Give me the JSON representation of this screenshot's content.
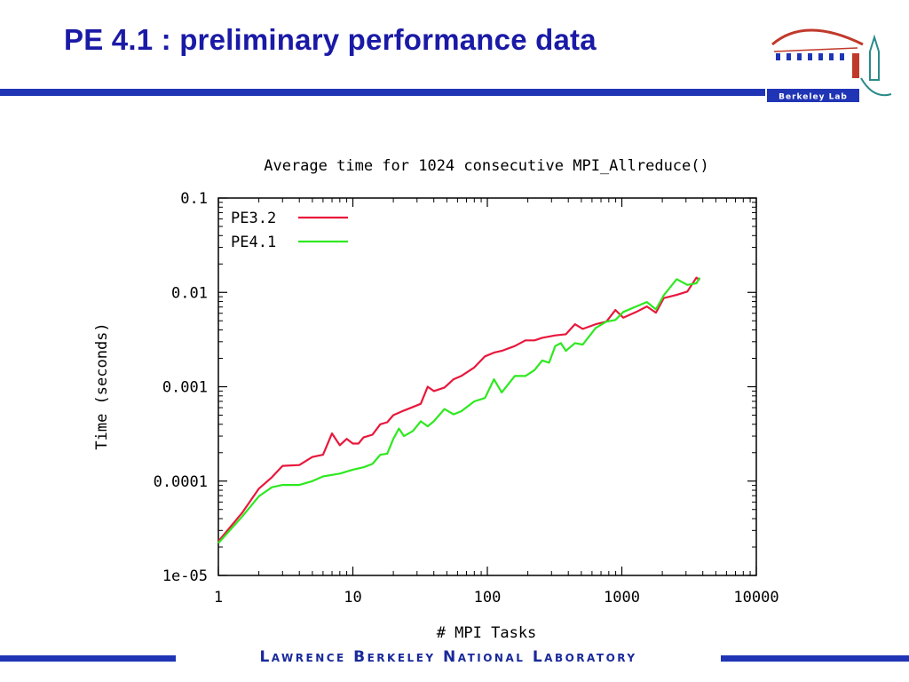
{
  "slide": {
    "title": "PE 4.1 : preliminary performance data",
    "logo_text": "Berkeley Lab",
    "footer": "Lawrence Berkeley National Laboratory"
  },
  "colors": {
    "accent": "#2035b5",
    "title": "#1a1aa6",
    "pe32": "#e8173c",
    "pe41": "#2ee820"
  },
  "chart_data": {
    "type": "line",
    "title": "Average time for 1024 consecutive MPI_Allreduce()",
    "xlabel": "# MPI Tasks",
    "ylabel": "Time (seconds)",
    "xscale": "log",
    "yscale": "log",
    "xlim": [
      1,
      10000
    ],
    "ylim": [
      1e-05,
      0.1
    ],
    "x_ticks": [
      1,
      10,
      100,
      1000,
      10000
    ],
    "x_tick_labels": [
      "1",
      "10",
      "100",
      "1000",
      "10000"
    ],
    "y_ticks": [
      1e-05,
      0.0001,
      0.001,
      0.01,
      0.1
    ],
    "y_tick_labels": [
      "1e-05",
      "0.0001",
      "0.001",
      "0.01",
      "0.1"
    ],
    "grid": false,
    "legend": "top-left",
    "series": [
      {
        "name": "PE3.2",
        "color": "#e8173c",
        "points": [
          [
            1,
            2.3e-05
          ],
          [
            1.5,
            4.6e-05
          ],
          [
            2,
            8.3e-05
          ],
          [
            2.5,
            0.00011
          ],
          [
            3,
            0.000145
          ],
          [
            4,
            0.000148
          ],
          [
            5,
            0.00018
          ],
          [
            6,
            0.00019
          ],
          [
            7,
            0.00032
          ],
          [
            8,
            0.00024
          ],
          [
            9,
            0.00028
          ],
          [
            10,
            0.00025
          ],
          [
            11,
            0.00025
          ],
          [
            12,
            0.00029
          ],
          [
            14,
            0.00031
          ],
          [
            16,
            0.0004
          ],
          [
            18,
            0.00042
          ],
          [
            20,
            0.0005
          ],
          [
            24,
            0.00056
          ],
          [
            28,
            0.00061
          ],
          [
            32,
            0.00066
          ],
          [
            36,
            0.001
          ],
          [
            40,
            0.0009
          ],
          [
            48,
            0.00098
          ],
          [
            56,
            0.0012
          ],
          [
            64,
            0.0013
          ],
          [
            80,
            0.0016
          ],
          [
            96,
            0.0021
          ],
          [
            112,
            0.0023
          ],
          [
            128,
            0.0024
          ],
          [
            160,
            0.0027
          ],
          [
            192,
            0.0031
          ],
          [
            224,
            0.0031
          ],
          [
            256,
            0.0033
          ],
          [
            320,
            0.0035
          ],
          [
            384,
            0.0036
          ],
          [
            448,
            0.0046
          ],
          [
            512,
            0.0041
          ],
          [
            640,
            0.0046
          ],
          [
            768,
            0.0049
          ],
          [
            896,
            0.0065
          ],
          [
            1024,
            0.0054
          ],
          [
            1280,
            0.0062
          ],
          [
            1536,
            0.0071
          ],
          [
            1792,
            0.0061
          ],
          [
            2048,
            0.0087
          ],
          [
            2560,
            0.0094
          ],
          [
            3072,
            0.0102
          ],
          [
            3584,
            0.0143
          ],
          [
            3800,
            0.0135
          ]
        ]
      },
      {
        "name": "PE4.1",
        "color": "#2ee820",
        "points": [
          [
            1,
            2.2e-05
          ],
          [
            1.5,
            4.2e-05
          ],
          [
            2,
            6.9e-05
          ],
          [
            2.5,
            8.6e-05
          ],
          [
            3,
            9.1e-05
          ],
          [
            4,
            9.1e-05
          ],
          [
            5,
            0.0001
          ],
          [
            6,
            0.000112
          ],
          [
            8,
            0.00012
          ],
          [
            10,
            0.000132
          ],
          [
            12,
            0.00014
          ],
          [
            14,
            0.000152
          ],
          [
            16,
            0.00019
          ],
          [
            18,
            0.000195
          ],
          [
            20,
            0.00028
          ],
          [
            22,
            0.00036
          ],
          [
            24,
            0.0003
          ],
          [
            28,
            0.00034
          ],
          [
            32,
            0.00043
          ],
          [
            36,
            0.00038
          ],
          [
            40,
            0.00043
          ],
          [
            48,
            0.00058
          ],
          [
            56,
            0.00051
          ],
          [
            64,
            0.00055
          ],
          [
            80,
            0.0007
          ],
          [
            96,
            0.00076
          ],
          [
            112,
            0.0012
          ],
          [
            128,
            0.00087
          ],
          [
            160,
            0.0013
          ],
          [
            192,
            0.0013
          ],
          [
            224,
            0.0015
          ],
          [
            256,
            0.0019
          ],
          [
            288,
            0.0018
          ],
          [
            320,
            0.0027
          ],
          [
            352,
            0.0029
          ],
          [
            384,
            0.0024
          ],
          [
            448,
            0.0029
          ],
          [
            512,
            0.0028
          ],
          [
            640,
            0.0042
          ],
          [
            768,
            0.0049
          ],
          [
            896,
            0.0051
          ],
          [
            1024,
            0.0062
          ],
          [
            1280,
            0.0071
          ],
          [
            1536,
            0.0079
          ],
          [
            1792,
            0.0066
          ],
          [
            2048,
            0.0093
          ],
          [
            2560,
            0.0138
          ],
          [
            3072,
            0.012
          ],
          [
            3584,
            0.0125
          ],
          [
            3800,
            0.0143
          ]
        ]
      }
    ]
  }
}
